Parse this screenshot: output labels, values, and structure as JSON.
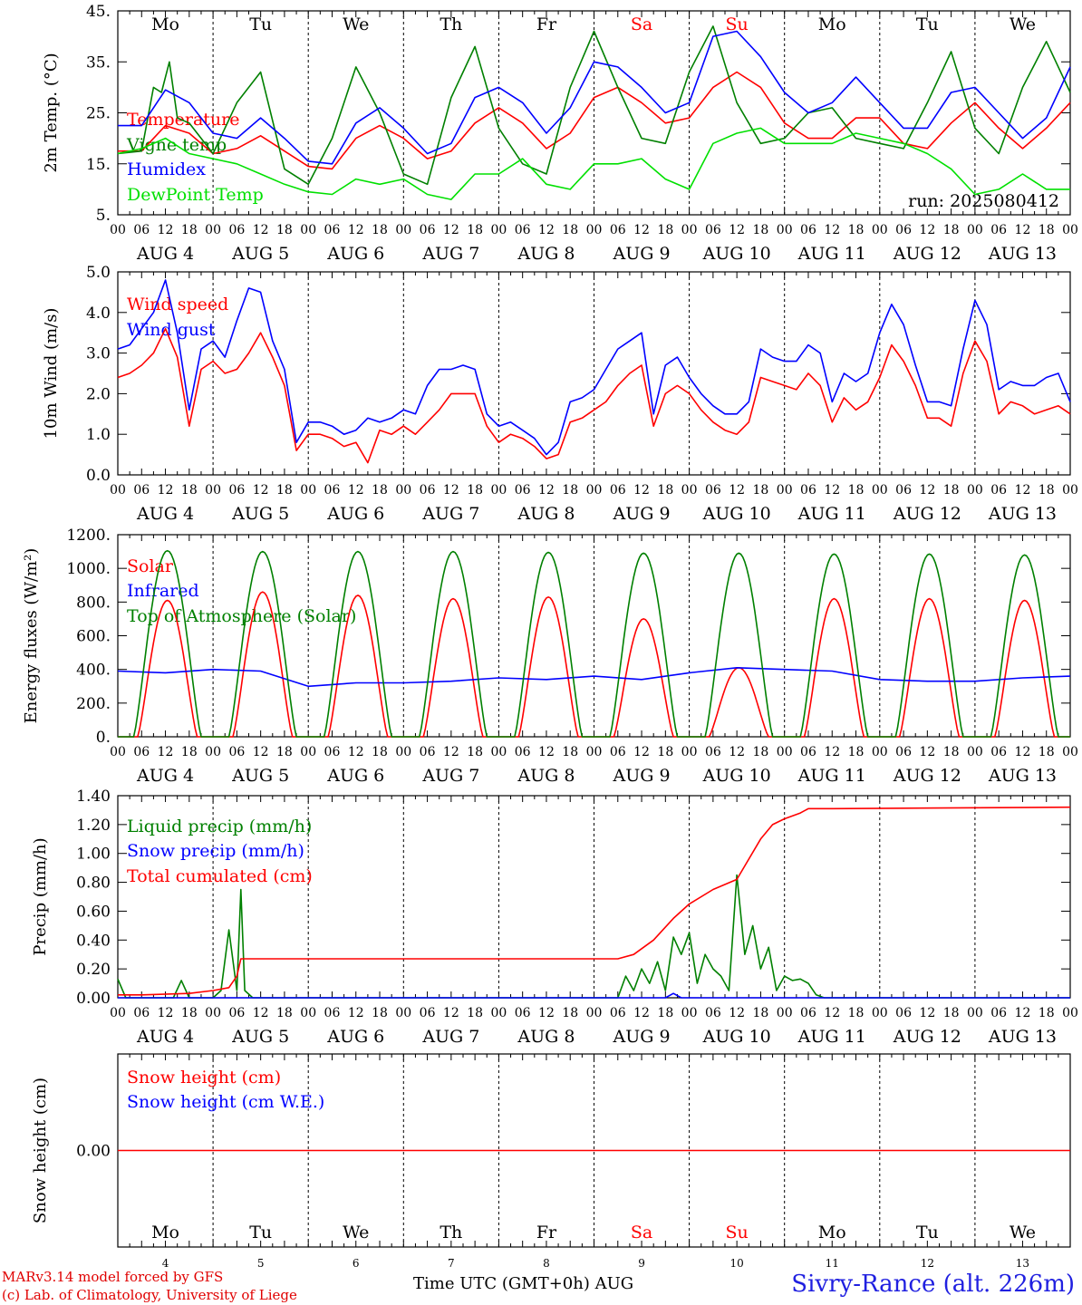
{
  "chart_data": [
    {
      "type": "line",
      "ylabel": "2m Temp. (°C)",
      "yticks": [
        "45.",
        "35.",
        "25.",
        "15.",
        "5."
      ],
      "ylim": [
        5,
        45
      ],
      "legend": [
        "Temperature",
        "Vigne temp",
        "Humidex",
        "DewPoint Temp"
      ],
      "annotation": "run: 2025080412",
      "series": [
        {
          "name": "Temperature",
          "color": "#ff0000",
          "x": [
            0,
            6,
            12,
            18,
            24,
            30,
            36,
            42,
            48,
            54,
            60,
            66,
            72,
            78,
            84,
            90,
            96,
            102,
            108,
            114,
            120,
            126,
            132,
            138,
            144,
            150,
            156,
            162,
            168,
            174,
            180,
            186,
            192,
            198,
            204,
            210,
            216,
            222,
            228,
            234,
            240
          ],
          "values": [
            17.5,
            17.5,
            22.5,
            21,
            17,
            18,
            20.5,
            17.5,
            14.5,
            14,
            20,
            22.5,
            20,
            16,
            17.5,
            23,
            26,
            23,
            18,
            21,
            28,
            30,
            27,
            23,
            24,
            30,
            33,
            30,
            23,
            20,
            20,
            24,
            24,
            19,
            18,
            23,
            27,
            22,
            18,
            22,
            27
          ]
        },
        {
          "name": "Vigne temp",
          "color": "#008000",
          "x": [
            0,
            6,
            9,
            11,
            13,
            15,
            18,
            24,
            30,
            36,
            42,
            48,
            54,
            60,
            66,
            72,
            78,
            84,
            90,
            96,
            102,
            108,
            114,
            120,
            126,
            132,
            138,
            144,
            150,
            156,
            162,
            168,
            174,
            180,
            186,
            192,
            198,
            204,
            210,
            216,
            222,
            228,
            234,
            240
          ],
          "values": [
            17,
            17.5,
            30,
            29,
            35,
            24,
            23,
            17,
            27,
            33,
            14,
            11,
            20,
            34,
            25,
            13,
            11,
            28,
            38,
            22,
            15,
            13,
            30,
            41,
            30,
            20,
            19,
            33,
            42,
            27,
            19,
            20,
            25,
            26,
            20,
            19,
            18,
            27,
            37,
            22,
            17,
            30,
            39,
            29
          ]
        },
        {
          "name": "Humidex",
          "color": "#0000ff",
          "x": [
            0,
            6,
            12,
            18,
            24,
            30,
            36,
            42,
            48,
            54,
            60,
            66,
            72,
            78,
            84,
            90,
            96,
            102,
            108,
            114,
            120,
            126,
            132,
            138,
            144,
            150,
            156,
            162,
            168,
            174,
            180,
            186,
            192,
            198,
            204,
            210,
            216,
            222,
            228,
            234,
            240
          ],
          "values": [
            22.5,
            22.5,
            29.5,
            27,
            21,
            20,
            24,
            20,
            15.5,
            15,
            23,
            26,
            22,
            17,
            19,
            28,
            30,
            27,
            21,
            26,
            35,
            34,
            30,
            25,
            27,
            40,
            41,
            36,
            29,
            25,
            27,
            32,
            27,
            22,
            22,
            29,
            30,
            25,
            20,
            24,
            34
          ]
        },
        {
          "name": "DewPoint Temp",
          "color": "#00e000",
          "x": [
            0,
            6,
            12,
            18,
            24,
            30,
            36,
            42,
            48,
            54,
            60,
            66,
            72,
            78,
            84,
            90,
            96,
            102,
            108,
            114,
            120,
            126,
            132,
            138,
            144,
            150,
            156,
            162,
            168,
            174,
            180,
            186,
            192,
            198,
            204,
            210,
            216,
            222,
            228,
            234,
            240
          ],
          "values": [
            17,
            18,
            20,
            17,
            16,
            15,
            13,
            11,
            9.5,
            9,
            12,
            11,
            12,
            9,
            8,
            13,
            13,
            16,
            11,
            10,
            15,
            15,
            16,
            12,
            10,
            19,
            21,
            22,
            19,
            19,
            19,
            21,
            20,
            19,
            17,
            14,
            9,
            10,
            13,
            10,
            10
          ]
        }
      ]
    },
    {
      "type": "line",
      "ylabel": "10m Wind (m/s)",
      "yticks": [
        "5.0",
        "4.0",
        "3.0",
        "2.0",
        "1.0",
        "0.0"
      ],
      "ylim": [
        0,
        5
      ],
      "legend": [
        "Wind speed",
        "Wind gust"
      ],
      "series": [
        {
          "name": "Wind speed",
          "color": "#ff0000",
          "x": [
            0,
            3,
            6,
            9,
            12,
            15,
            18,
            21,
            24,
            27,
            30,
            33,
            36,
            39,
            42,
            45,
            48,
            51,
            54,
            57,
            60,
            63,
            66,
            69,
            72,
            75,
            78,
            81,
            84,
            87,
            90,
            93,
            96,
            99,
            102,
            105,
            108,
            111,
            114,
            117,
            120,
            123,
            126,
            129,
            132,
            135,
            138,
            141,
            144,
            147,
            150,
            153,
            156,
            159,
            162,
            165,
            168,
            171,
            174,
            177,
            180,
            183,
            186,
            189,
            192,
            195,
            198,
            201,
            204,
            207,
            210,
            213,
            216,
            219,
            222,
            225,
            228,
            231,
            234,
            237,
            240
          ],
          "values": [
            2.4,
            2.5,
            2.7,
            3.0,
            3.6,
            2.9,
            1.2,
            2.6,
            2.8,
            2.5,
            2.6,
            3.0,
            3.5,
            2.9,
            2.2,
            0.6,
            1.0,
            1.0,
            0.9,
            0.7,
            0.8,
            0.3,
            1.1,
            1.0,
            1.2,
            1.0,
            1.3,
            1.6,
            2.0,
            2.0,
            2.0,
            1.2,
            0.8,
            1.0,
            0.9,
            0.7,
            0.4,
            0.5,
            1.3,
            1.4,
            1.6,
            1.8,
            2.2,
            2.5,
            2.7,
            1.2,
            2.0,
            2.2,
            2.0,
            1.6,
            1.3,
            1.1,
            1.0,
            1.3,
            2.4,
            2.3,
            2.2,
            2.1,
            2.5,
            2.2,
            1.3,
            1.9,
            1.6,
            1.8,
            2.4,
            3.2,
            2.8,
            2.2,
            1.4,
            1.4,
            1.2,
            2.5,
            3.3,
            2.8,
            1.5,
            1.8,
            1.7,
            1.5,
            1.6,
            1.7,
            1.5
          ]
        },
        {
          "name": "Wind gust",
          "color": "#0000ff",
          "x": [
            0,
            3,
            6,
            9,
            12,
            15,
            18,
            21,
            24,
            27,
            30,
            33,
            36,
            39,
            42,
            45,
            48,
            51,
            54,
            57,
            60,
            63,
            66,
            69,
            72,
            75,
            78,
            81,
            84,
            87,
            90,
            93,
            96,
            99,
            102,
            105,
            108,
            111,
            114,
            117,
            120,
            123,
            126,
            129,
            132,
            135,
            138,
            141,
            144,
            147,
            150,
            153,
            156,
            159,
            162,
            165,
            168,
            171,
            174,
            177,
            180,
            183,
            186,
            189,
            192,
            195,
            198,
            201,
            204,
            207,
            210,
            213,
            216,
            219,
            222,
            225,
            228,
            231,
            234,
            237,
            240
          ],
          "values": [
            3.1,
            3.2,
            3.6,
            4.0,
            4.8,
            3.5,
            1.6,
            3.1,
            3.3,
            2.9,
            3.8,
            4.6,
            4.5,
            3.3,
            2.6,
            0.8,
            1.3,
            1.3,
            1.2,
            1.0,
            1.1,
            1.4,
            1.3,
            1.4,
            1.6,
            1.5,
            2.2,
            2.6,
            2.6,
            2.7,
            2.6,
            1.5,
            1.2,
            1.3,
            1.1,
            0.9,
            0.5,
            0.8,
            1.8,
            1.9,
            2.1,
            2.6,
            3.1,
            3.3,
            3.5,
            1.5,
            2.7,
            2.9,
            2.4,
            2.0,
            1.7,
            1.5,
            1.5,
            1.8,
            3.1,
            2.9,
            2.8,
            2.8,
            3.2,
            3.0,
            1.8,
            2.5,
            2.3,
            2.5,
            3.5,
            4.2,
            3.7,
            2.7,
            1.8,
            1.8,
            1.7,
            3.1,
            4.3,
            3.7,
            2.1,
            2.3,
            2.2,
            2.2,
            2.4,
            2.5,
            1.8
          ]
        }
      ]
    },
    {
      "type": "line",
      "ylabel": "Energy fluxes (W/m²)",
      "yticks": [
        "1200.",
        "1000.",
        "800.",
        "600.",
        "400.",
        "200.",
        "0."
      ],
      "ylim": [
        0,
        1200
      ],
      "legend": [
        "Solar",
        "Infrared",
        "Top of Atmosphere (Solar)"
      ],
      "series": [
        {
          "name": "Solar",
          "color": "#ff0000",
          "daily_peak": [
            810,
            860,
            840,
            820,
            830,
            700,
            410,
            820,
            820,
            810
          ],
          "sunrise_hour": 5,
          "sunset_hour": 20
        },
        {
          "name": "Infrared",
          "color": "#0000ff",
          "x": [
            0,
            12,
            24,
            36,
            48,
            60,
            72,
            84,
            96,
            108,
            120,
            132,
            144,
            156,
            168,
            180,
            192,
            204,
            216,
            228,
            240
          ],
          "values": [
            390,
            380,
            400,
            390,
            300,
            320,
            320,
            330,
            350,
            340,
            360,
            340,
            380,
            410,
            400,
            390,
            340,
            330,
            330,
            350,
            360
          ]
        },
        {
          "name": "Top of Atmosphere (Solar)",
          "color": "#008000",
          "daily_peak": [
            1105,
            1100,
            1100,
            1100,
            1095,
            1090,
            1090,
            1085,
            1085,
            1080
          ],
          "sunrise_hour": 4,
          "sunset_hour": 21
        }
      ]
    },
    {
      "type": "line",
      "ylabel": "Precip (mm/h)",
      "yticks": [
        "1.40",
        "1.20",
        "1.00",
        "0.80",
        "0.60",
        "0.40",
        "0.20",
        "0.00"
      ],
      "ylim": [
        0,
        1.4
      ],
      "legend": [
        "Liquid precip (mm/h)",
        "Snow precip (mm/h)",
        "Total cumulated (cm)"
      ],
      "series": [
        {
          "name": "Liquid precip (mm/h)",
          "color": "#008000",
          "x": [
            0,
            2,
            4,
            14,
            16,
            18,
            24,
            26,
            28,
            30,
            31,
            32,
            34,
            36,
            120,
            126,
            128,
            130,
            132,
            134,
            136,
            138,
            140,
            142,
            144,
            146,
            148,
            150,
            152,
            154,
            156,
            158,
            160,
            162,
            164,
            166,
            168,
            170,
            172,
            174,
            176,
            178,
            180,
            240
          ],
          "values": [
            0.13,
            0,
            0,
            0,
            0.12,
            0,
            0,
            0.05,
            0.47,
            0.05,
            0.75,
            0.05,
            0,
            0,
            0,
            0,
            0.15,
            0.05,
            0.2,
            0.1,
            0.25,
            0.05,
            0.42,
            0.3,
            0.45,
            0.1,
            0.3,
            0.2,
            0.15,
            0.05,
            0.85,
            0.3,
            0.5,
            0.2,
            0.35,
            0.05,
            0.15,
            0.12,
            0.13,
            0.1,
            0.02,
            0,
            0,
            0
          ]
        },
        {
          "name": "Snow precip (mm/h)",
          "color": "#0000ff",
          "x": [
            0,
            138,
            140,
            142,
            240
          ],
          "values": [
            0,
            0,
            0.03,
            0,
            0
          ]
        },
        {
          "name": "Total cumulated (cm)",
          "color": "#ff0000",
          "x": [
            0,
            6,
            18,
            24,
            28,
            30,
            31,
            32,
            36,
            126,
            130,
            135,
            140,
            144,
            150,
            156,
            162,
            165,
            168,
            172,
            174,
            180,
            240
          ],
          "values": [
            0.02,
            0.02,
            0.03,
            0.05,
            0.07,
            0.15,
            0.27,
            0.27,
            0.27,
            0.27,
            0.3,
            0.4,
            0.55,
            0.65,
            0.75,
            0.82,
            1.1,
            1.2,
            1.24,
            1.28,
            1.31,
            1.31,
            1.32
          ]
        }
      ]
    },
    {
      "type": "line",
      "ylabel": "Snow height (cm)",
      "yticks": [
        "0.00"
      ],
      "legend": [
        "Snow height (cm)",
        "Snow height (cm W.E.)"
      ],
      "series": [
        {
          "name": "Snow height (cm)",
          "color": "#ff0000",
          "x": [
            0,
            240
          ],
          "values": [
            0,
            0
          ]
        }
      ]
    }
  ],
  "day_labels": [
    "Mo",
    "Tu",
    "We",
    "Th",
    "Fr",
    "Sa",
    "Su",
    "Mo",
    "Tu",
    "We"
  ],
  "weekend_color": "#ff0000",
  "hour_ticks": [
    "00",
    "06",
    "12",
    "18"
  ],
  "final_hour_tick": "00",
  "date_labels": [
    "AUG  4",
    "AUG  5",
    "AUG  6",
    "AUG  7",
    "AUG  8",
    "AUG  9",
    "AUG 10",
    "AUG 11",
    "AUG 12",
    "AUG 13"
  ],
  "bottom_day_numbers": [
    "4",
    "5",
    "6",
    "7",
    "8",
    "9",
    "10",
    "11",
    "12",
    "13"
  ],
  "xlabel": "Time UTC (GMT+0h)",
  "xlabel_month": "AUG",
  "credit_line1": "MARv3.14 model forced by GFS",
  "credit_line2": "(c) Lab. of Climatology, University of Liege",
  "station": "Sivry-Rance (alt. 226m)"
}
